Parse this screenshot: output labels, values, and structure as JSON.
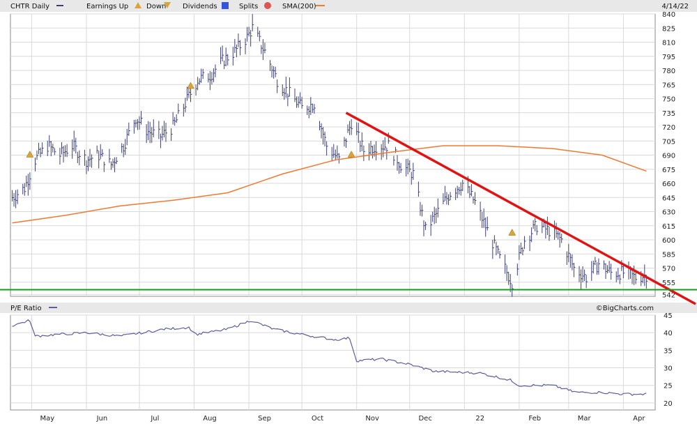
{
  "header": {
    "symbol_label": "CHTR Daily",
    "earnings_up_label": "Earnings Up",
    "earnings_down_label": "Down",
    "dividends_label": "Dividends",
    "splits_label": "Splits",
    "sma_label": "SMA(200)",
    "date": "4/14/22",
    "pe_label": "P/E Ratio",
    "brand": "©BigCharts.com"
  },
  "colors": {
    "price": "#3b3f7a",
    "sma": "#f07830",
    "trendline": "#e41111",
    "support": "#1a9a1a",
    "pe": "#5a5e9a",
    "grid": "#d9d9d9",
    "header_bg": "#e8e8e8",
    "dividend_icon": "#3355dd",
    "split_icon": "#dd5555",
    "earnings_icon": "#d9a53a"
  },
  "chart_data": [
    {
      "type": "line",
      "name": "price",
      "title": "CHTR Daily",
      "y_ticks": [
        840,
        825,
        810,
        795,
        780,
        765,
        750,
        735,
        720,
        705,
        690,
        675,
        660,
        645,
        630,
        615,
        600,
        585,
        570,
        555,
        542
      ],
      "ylim": [
        540,
        840
      ],
      "x_months": [
        "May",
        "Jun",
        "Jul",
        "Aug",
        "Sep",
        "Oct",
        "Nov",
        "Dec",
        "22",
        "Feb",
        "Mar",
        "Apr"
      ],
      "x": [
        "Apr 2021",
        "May 2021",
        "Jun 2021",
        "Jul 2021",
        "Aug 2021",
        "Sep 2021",
        "Oct 2021",
        "Nov 2021",
        "Dec 2021",
        "Jan 2022",
        "Feb 2022",
        "Mar 2022",
        "Apr 2022"
      ],
      "series": [
        {
          "name": "CHTR Daily",
          "x": [
            "2021-04-20",
            "2021-04-27",
            "2021-05-03",
            "2021-05-10",
            "2021-05-17",
            "2021-05-24",
            "2021-06-01",
            "2021-06-08",
            "2021-06-15",
            "2021-06-22",
            "2021-06-29",
            "2021-07-06",
            "2021-07-13",
            "2021-07-20",
            "2021-07-27",
            "2021-08-03",
            "2021-08-10",
            "2021-08-17",
            "2021-08-24",
            "2021-08-31",
            "2021-09-03",
            "2021-09-10",
            "2021-09-17",
            "2021-09-24",
            "2021-10-01",
            "2021-10-08",
            "2021-10-15",
            "2021-10-22",
            "2021-10-29",
            "2021-11-05",
            "2021-11-12",
            "2021-11-19",
            "2021-11-26",
            "2021-12-03",
            "2021-12-10",
            "2021-12-17",
            "2021-12-24",
            "2021-12-31",
            "2022-01-07",
            "2022-01-14",
            "2022-01-21",
            "2022-01-28",
            "2022-02-04",
            "2022-02-11",
            "2022-02-18",
            "2022-02-25",
            "2022-03-04",
            "2022-03-11",
            "2022-03-18",
            "2022-03-25",
            "2022-04-01",
            "2022-04-08",
            "2022-04-14"
          ],
          "values": [
            645,
            655,
            685,
            700,
            690,
            700,
            685,
            690,
            680,
            700,
            730,
            715,
            710,
            720,
            745,
            770,
            775,
            790,
            800,
            815,
            825,
            800,
            770,
            755,
            740,
            745,
            700,
            685,
            725,
            695,
            700,
            700,
            680,
            670,
            610,
            630,
            650,
            660,
            640,
            610,
            580,
            555,
            600,
            615,
            610,
            600,
            570,
            560,
            575,
            565,
            565,
            560,
            563
          ]
        },
        {
          "name": "SMA(200)",
          "x": [
            "2021-04-20",
            "2021-05-20",
            "2021-06-20",
            "2021-07-20",
            "2021-08-20",
            "2021-09-20",
            "2021-10-20",
            "2021-11-20",
            "2021-12-20",
            "2022-01-20",
            "2022-02-20",
            "2022-03-20",
            "2022-04-14"
          ],
          "values": [
            618,
            626,
            636,
            642,
            650,
            670,
            685,
            693,
            700,
            700,
            697,
            690,
            673
          ]
        }
      ],
      "trendline": {
        "x": [
          "2021-10-26",
          "2022-04-20"
        ],
        "values": [
          735,
          542
        ]
      },
      "support_level": 547,
      "earnings_markers": [
        {
          "date": "2021-04-30",
          "value": 690
        },
        {
          "date": "2021-07-30",
          "value": 763
        },
        {
          "date": "2021-10-29",
          "value": 690
        },
        {
          "date": "2022-01-28",
          "value": 607
        }
      ]
    },
    {
      "type": "line",
      "name": "pe",
      "title": "P/E Ratio",
      "y_ticks": [
        45,
        40,
        35,
        30,
        25,
        20
      ],
      "ylim": [
        18,
        45
      ],
      "series": [
        {
          "name": "P/E Ratio",
          "x": [
            "2021-04-20",
            "2021-04-30",
            "2021-05-03",
            "2021-05-15",
            "2021-06-01",
            "2021-06-20",
            "2021-07-15",
            "2021-07-29",
            "2021-08-02",
            "2021-08-20",
            "2021-09-02",
            "2021-09-15",
            "2021-10-01",
            "2021-10-20",
            "2021-10-28",
            "2021-11-01",
            "2021-11-15",
            "2021-12-01",
            "2021-12-15",
            "2022-01-10",
            "2022-01-27",
            "2022-02-01",
            "2022-02-20",
            "2022-03-05",
            "2022-03-20",
            "2022-04-01",
            "2022-04-14"
          ],
          "values": [
            42,
            43.5,
            39,
            39.5,
            40,
            39,
            41,
            41.5,
            39.5,
            41,
            43.5,
            41,
            39.5,
            38,
            38.5,
            32,
            32.5,
            31,
            29,
            28.5,
            26.5,
            25,
            25,
            23,
            23,
            22.5,
            22.5
          ]
        }
      ]
    }
  ]
}
